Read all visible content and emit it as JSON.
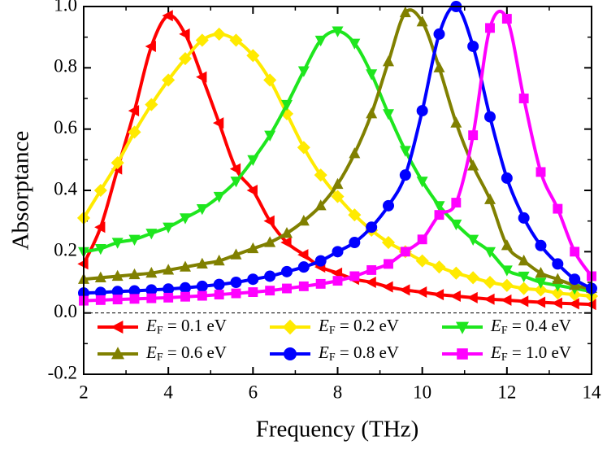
{
  "chart_data": {
    "type": "line",
    "x_label": "Frequency (THz)",
    "y_label": "Absorptance",
    "x": [
      2.0,
      2.4,
      2.8,
      3.2,
      3.6,
      4.0,
      4.4,
      4.8,
      5.2,
      5.6,
      6.0,
      6.4,
      6.8,
      7.2,
      7.6,
      8.0,
      8.4,
      8.8,
      9.2,
      9.6,
      10.0,
      10.4,
      10.8,
      11.2,
      11.6,
      12.0,
      12.4,
      12.8,
      13.2,
      13.6,
      14.0
    ],
    "xlim": [
      2,
      14
    ],
    "xticks": [
      2,
      4,
      6,
      8,
      10,
      12,
      14
    ],
    "ylim": [
      -0.2,
      1.0
    ],
    "yticks": [
      -0.2,
      {
        "value": 0,
        "label": "0.0"
      },
      0.2,
      0.4,
      0.6,
      0.8,
      {
        "value": 1,
        "label": "1.0"
      }
    ],
    "zero_line": true,
    "series": [
      {
        "name": "EF = 0.1 eV",
        "color": "#ff0000",
        "marker": "triangle-left",
        "values": [
          0.16,
          0.28,
          0.47,
          0.66,
          0.87,
          0.97,
          0.91,
          0.77,
          0.62,
          0.47,
          0.4,
          0.3,
          0.23,
          0.19,
          0.15,
          0.13,
          0.11,
          0.1,
          0.085,
          0.075,
          0.068,
          0.06,
          0.055,
          0.05,
          0.045,
          0.042,
          0.038,
          0.035,
          0.032,
          0.03,
          0.028
        ]
      },
      {
        "name": "EF = 0.2 eV",
        "color": "#ffea00",
        "marker": "diamond",
        "values": [
          0.31,
          0.4,
          0.49,
          0.59,
          0.68,
          0.76,
          0.83,
          0.89,
          0.91,
          0.89,
          0.84,
          0.76,
          0.65,
          0.54,
          0.45,
          0.38,
          0.32,
          0.27,
          0.23,
          0.2,
          0.17,
          0.15,
          0.13,
          0.115,
          0.1,
          0.09,
          0.08,
          0.075,
          0.065,
          0.06,
          0.055
        ]
      },
      {
        "name": "EF = 0.4 eV",
        "color": "#1ee61e",
        "marker": "triangle-down",
        "values": [
          0.2,
          0.21,
          0.23,
          0.24,
          0.26,
          0.28,
          0.31,
          0.34,
          0.38,
          0.43,
          0.5,
          0.58,
          0.68,
          0.79,
          0.89,
          0.92,
          0.88,
          0.78,
          0.65,
          0.53,
          0.43,
          0.35,
          0.29,
          0.24,
          0.2,
          0.14,
          0.12,
          0.1,
          0.09,
          0.08,
          0.07
        ]
      },
      {
        "name": "EF = 0.6 eV",
        "color": "#808000",
        "marker": "triangle-up",
        "values": [
          0.11,
          0.115,
          0.12,
          0.125,
          0.13,
          0.14,
          0.15,
          0.16,
          0.17,
          0.19,
          0.21,
          0.23,
          0.26,
          0.3,
          0.35,
          0.42,
          0.52,
          0.65,
          0.82,
          0.98,
          0.95,
          0.8,
          0.62,
          0.48,
          0.37,
          0.22,
          0.17,
          0.13,
          0.11,
          0.09,
          0.08
        ]
      },
      {
        "name": "EF = 0.8 eV",
        "color": "#0000ff",
        "marker": "circle",
        "values": [
          0.065,
          0.067,
          0.07,
          0.072,
          0.075,
          0.078,
          0.082,
          0.087,
          0.093,
          0.1,
          0.11,
          0.12,
          0.135,
          0.15,
          0.17,
          0.2,
          0.23,
          0.28,
          0.35,
          0.45,
          0.66,
          0.91,
          1.0,
          0.87,
          0.64,
          0.44,
          0.31,
          0.22,
          0.16,
          0.11,
          0.08
        ]
      },
      {
        "name": "EF = 1.0 eV",
        "color": "#ff00ff",
        "marker": "square",
        "values": [
          0.04,
          0.042,
          0.044,
          0.046,
          0.048,
          0.05,
          0.053,
          0.056,
          0.06,
          0.064,
          0.068,
          0.073,
          0.08,
          0.087,
          0.095,
          0.105,
          0.12,
          0.14,
          0.16,
          0.2,
          0.24,
          0.32,
          0.36,
          0.58,
          0.93,
          0.96,
          0.7,
          0.46,
          0.34,
          0.2,
          0.12
        ]
      }
    ]
  }
}
